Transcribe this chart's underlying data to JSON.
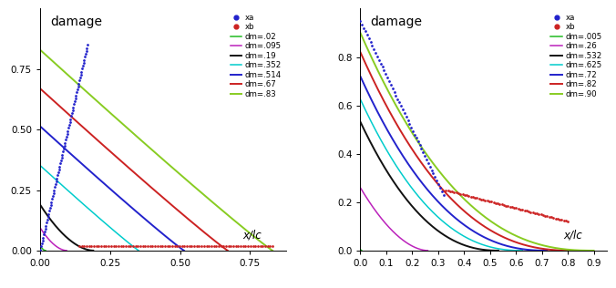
{
  "left": {
    "title": "damage",
    "xlabel": "x/lc",
    "xlim": [
      0,
      0.88
    ],
    "ylim": [
      0,
      1.0
    ],
    "xticks": [
      0,
      0.25,
      0.5,
      0.75
    ],
    "yticks": [
      0,
      0.25,
      0.5,
      0.75
    ],
    "K": 0.01,
    "curves": [
      {
        "label": "dm=.02",
        "color": "#22bb22",
        "dm": 0.02,
        "lw": 1.1
      },
      {
        "label": "dm=.095",
        "color": "#bb22bb",
        "dm": 0.095,
        "lw": 1.1
      },
      {
        "label": "dm=.19",
        "color": "#111111",
        "dm": 0.19,
        "lw": 1.4
      },
      {
        "label": "dm=.352",
        "color": "#00cccc",
        "dm": 0.352,
        "lw": 1.1
      },
      {
        "label": "dm=.514",
        "color": "#2222cc",
        "dm": 0.514,
        "lw": 1.4
      },
      {
        "label": "dm=.67",
        "color": "#cc2222",
        "dm": 0.67,
        "lw": 1.4
      },
      {
        "label": "dm=.83",
        "color": "#88cc22",
        "dm": 0.83,
        "lw": 1.4
      }
    ],
    "xa_color": "#2222cc",
    "xb_color": "#cc2222",
    "legend_loc": "upper right",
    "legend_bbox": null
  },
  "right": {
    "title": "damage",
    "xlabel": "x/lc",
    "xlim": [
      0,
      0.95
    ],
    "ylim": [
      0,
      1.0
    ],
    "xticks": [
      0,
      0.1,
      0.2,
      0.3,
      0.4,
      0.5,
      0.6,
      0.7,
      0.8,
      0.9
    ],
    "yticks": [
      0,
      0.2,
      0.4,
      0.6,
      0.8
    ],
    "K": 0.1,
    "curves": [
      {
        "label": "dm=.005",
        "color": "#22bb22",
        "dm": 0.005,
        "lw": 1.1
      },
      {
        "label": "dm=.26",
        "color": "#bb22bb",
        "dm": 0.26,
        "lw": 1.1
      },
      {
        "label": "dm=.532",
        "color": "#111111",
        "dm": 0.532,
        "lw": 1.4
      },
      {
        "label": "dm=.625",
        "color": "#00cccc",
        "dm": 0.625,
        "lw": 1.1
      },
      {
        "label": "dm=.72",
        "color": "#2222cc",
        "dm": 0.72,
        "lw": 1.4
      },
      {
        "label": "dm=.82",
        "color": "#cc2222",
        "dm": 0.82,
        "lw": 1.4
      },
      {
        "label": "dm=.90",
        "color": "#88cc22",
        "dm": 0.9,
        "lw": 1.4
      }
    ],
    "xa_color": "#2222cc",
    "xb_color": "#cc2222",
    "legend_loc": "upper right",
    "legend_bbox": null
  }
}
